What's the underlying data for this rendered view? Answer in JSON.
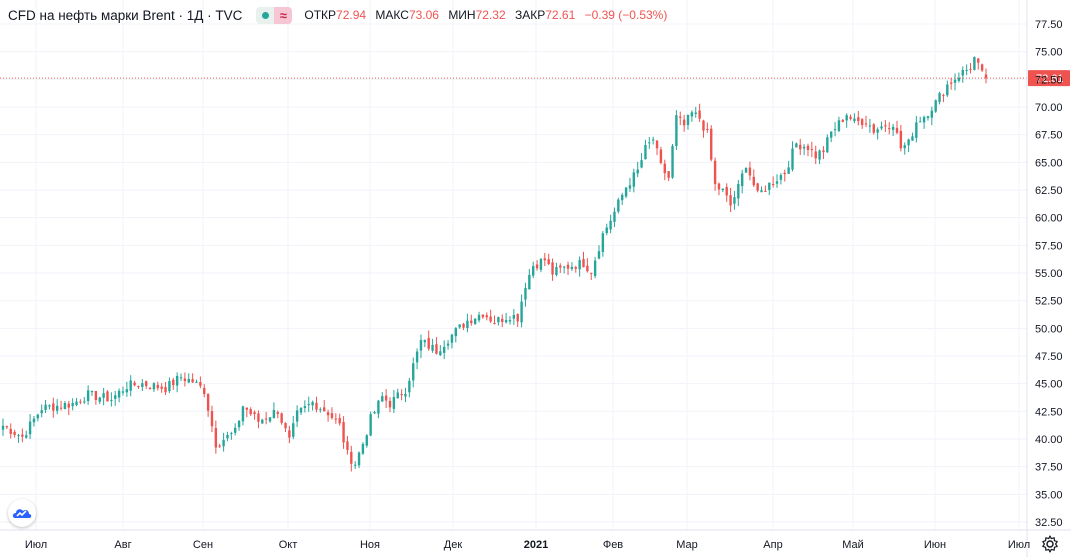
{
  "header": {
    "title": "CFD на нефть марки Brent · 1Д · TVC",
    "approx_glyph": "≈",
    "ohlc": [
      {
        "label": "ОТКР",
        "value": "72.94"
      },
      {
        "label": "МАКС",
        "value": "73.06"
      },
      {
        "label": "МИН",
        "value": "72.32"
      },
      {
        "label": "ЗАКР",
        "value": "72.61"
      },
      {
        "label": "",
        "value": "−0.39 (−0.53%)"
      }
    ]
  },
  "icons": {
    "logo": "tradingview-cloud-icon",
    "settings": "gear-icon"
  },
  "colors": {
    "up": "#26a69a",
    "down": "#ef5350",
    "price_line": "#ef5350",
    "grid": "#f0f3fa",
    "axis_text": "#131722"
  },
  "chart_data": {
    "type": "candlestick",
    "title": "CFD на нефть марки Brent · 1Д · TVC",
    "ylim": [
      32.5,
      77.5
    ],
    "y_ticks": [
      "32.50",
      "35.00",
      "37.50",
      "40.00",
      "42.50",
      "45.00",
      "47.50",
      "50.00",
      "52.50",
      "55.00",
      "57.50",
      "60.00",
      "62.50",
      "65.00",
      "67.50",
      "70.00",
      "72.50",
      "75.00",
      "77.50"
    ],
    "x_labels": [
      {
        "label": "Июл",
        "bold": false
      },
      {
        "label": "Авг",
        "bold": false
      },
      {
        "label": "Сен",
        "bold": false
      },
      {
        "label": "Окт",
        "bold": false
      },
      {
        "label": "Ноя",
        "bold": false
      },
      {
        "label": "Дек",
        "bold": false
      },
      {
        "label": "2021",
        "bold": true
      },
      {
        "label": "Фев",
        "bold": false
      },
      {
        "label": "Мар",
        "bold": false
      },
      {
        "label": "Апр",
        "bold": false
      },
      {
        "label": "Май",
        "bold": false
      },
      {
        "label": "Июн",
        "bold": false
      },
      {
        "label": "Июл",
        "bold": false
      }
    ],
    "last_price": 72.61,
    "last_price_label": "72.61",
    "grid": true,
    "anchors": [
      [
        0,
        41.2
      ],
      [
        5,
        40.2
      ],
      [
        10,
        42.8
      ],
      [
        18,
        43.2
      ],
      [
        22,
        44.0
      ],
      [
        28,
        43.6
      ],
      [
        32,
        44.8
      ],
      [
        36,
        45.0
      ],
      [
        42,
        44.6
      ],
      [
        46,
        45.6
      ],
      [
        49,
        45.2
      ],
      [
        52,
        44.4
      ],
      [
        55,
        39.6
      ],
      [
        60,
        40.6
      ],
      [
        62,
        43.0
      ],
      [
        66,
        41.6
      ],
      [
        71,
        42.6
      ],
      [
        74,
        39.8
      ],
      [
        76,
        42.2
      ],
      [
        80,
        43.3
      ],
      [
        84,
        42.4
      ],
      [
        87,
        41.2
      ],
      [
        89,
        38.6
      ],
      [
        91,
        37.8
      ],
      [
        93,
        39.6
      ],
      [
        95,
        41.8
      ],
      [
        98,
        43.8
      ],
      [
        100,
        43.2
      ],
      [
        104,
        44.5
      ],
      [
        108,
        48.8
      ],
      [
        112,
        48.0
      ],
      [
        116,
        49.4
      ],
      [
        120,
        50.7
      ],
      [
        124,
        51.4
      ],
      [
        127,
        50.6
      ],
      [
        131,
        51.2
      ],
      [
        133,
        51.0
      ],
      [
        135,
        54.0
      ],
      [
        137,
        55.7
      ],
      [
        140,
        56.2
      ],
      [
        142,
        55.0
      ],
      [
        146,
        55.6
      ],
      [
        150,
        55.9
      ],
      [
        152,
        55.2
      ],
      [
        155,
        58.5
      ],
      [
        158,
        60.5
      ],
      [
        161,
        62.8
      ],
      [
        164,
        64.2
      ],
      [
        166,
        66.2
      ],
      [
        168,
        67.1
      ],
      [
        170,
        64.6
      ],
      [
        172,
        63.6
      ],
      [
        174,
        69.0
      ],
      [
        176,
        68.3
      ],
      [
        178,
        69.4
      ],
      [
        180,
        69.0
      ],
      [
        182,
        67.5
      ],
      [
        184,
        62.9
      ],
      [
        186,
        62.4
      ],
      [
        188,
        61.1
      ],
      [
        190,
        62.7
      ],
      [
        192,
        64.9
      ],
      [
        195,
        62.0
      ],
      [
        198,
        63.0
      ],
      [
        202,
        64.1
      ],
      [
        205,
        66.7
      ],
      [
        208,
        66.4
      ],
      [
        210,
        65.6
      ],
      [
        212,
        66.1
      ],
      [
        214,
        67.7
      ],
      [
        216,
        68.5
      ],
      [
        218,
        69.4
      ],
      [
        220,
        68.6
      ],
      [
        223,
        68.8
      ],
      [
        225,
        67.9
      ],
      [
        228,
        68.4
      ],
      [
        230,
        68.6
      ],
      [
        232,
        66.3
      ],
      [
        234,
        66.7
      ],
      [
        236,
        68.7
      ],
      [
        238,
        69.2
      ],
      [
        241,
        70.4
      ],
      [
        244,
        72.0
      ],
      [
        247,
        72.9
      ],
      [
        250,
        73.6
      ],
      [
        251,
        74.4
      ],
      [
        253,
        72.9
      ],
      [
        254,
        72.61
      ]
    ]
  }
}
